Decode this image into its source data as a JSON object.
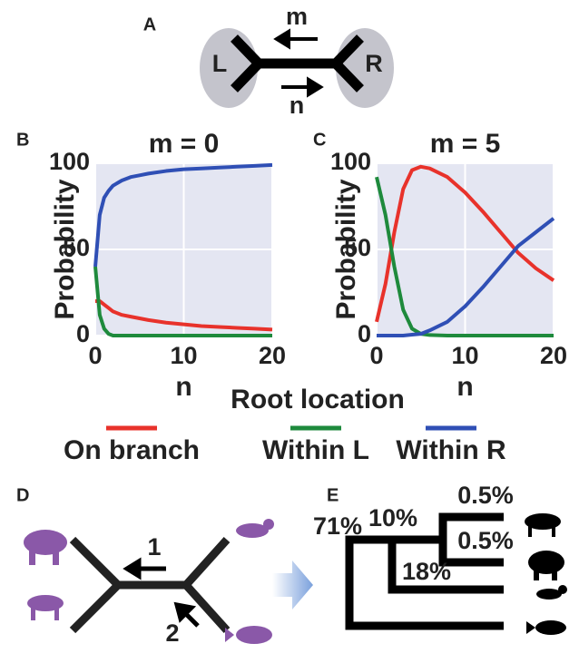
{
  "panels": {
    "a": "A",
    "b": "B",
    "c": "C",
    "d": "D",
    "e": "E"
  },
  "diagram_a": {
    "left": "L",
    "right": "R",
    "top_arrow": "m",
    "bottom_arrow": "n"
  },
  "legend_title": "Root location",
  "diagram_d": {
    "arrow_1": "1",
    "arrow_2": "2"
  },
  "diagram_e": {
    "root": "71%",
    "inner": "10%",
    "bird_branch": "18%",
    "top_pair": "0.5%",
    "bottom_pair": "0.5%"
  },
  "chart_data": [
    {
      "type": "line",
      "title": "m = 0",
      "y_label": "Probability",
      "x_label": "n",
      "x": [
        0,
        0.5,
        1,
        1.5,
        2,
        3,
        4,
        5,
        6,
        8,
        10,
        12,
        14,
        16,
        18,
        20
      ],
      "series": [
        {
          "name": "On branch",
          "color": "#e8322b",
          "values": [
            20,
            20,
            18,
            16,
            14,
            12,
            11,
            10,
            9,
            7.5,
            6.5,
            5.5,
            5,
            4.5,
            4,
            3.5
          ]
        },
        {
          "name": "Within L",
          "color": "#1e8a3c",
          "values": [
            40,
            12,
            4,
            1,
            0,
            0,
            0,
            0,
            0,
            0,
            0,
            0,
            0,
            0,
            0,
            0
          ]
        },
        {
          "name": "Within R",
          "color": "#2f4fb5",
          "values": [
            40,
            70,
            80,
            84,
            87,
            90,
            92,
            93,
            94,
            95.5,
            96.5,
            97,
            97.5,
            98,
            98.5,
            99
          ]
        }
      ],
      "xlim": [
        0,
        20
      ],
      "ylim": [
        0,
        100
      ],
      "xticks": [
        0,
        10,
        20
      ],
      "yticks": [
        0,
        50,
        100
      ],
      "grid": true
    },
    {
      "type": "line",
      "title": "m = 5",
      "y_label": "Probability",
      "x_label": "n",
      "x": [
        0,
        1,
        2,
        3,
        4,
        5,
        6,
        8,
        10,
        12,
        14,
        16,
        18,
        20
      ],
      "series": [
        {
          "color": "#e8322b",
          "values": [
            8,
            30,
            60,
            85,
            96,
            98,
            97,
            92,
            83,
            72,
            60,
            48,
            39,
            32
          ]
        },
        {
          "color": "#1e8a3c",
          "values": [
            92,
            70,
            40,
            15,
            4,
            1,
            0.3,
            0,
            0,
            0,
            0,
            0,
            0,
            0
          ]
        },
        {
          "color": "#2f4fb5",
          "values": [
            0,
            0,
            0,
            0,
            0.5,
            1,
            3,
            8,
            17,
            28,
            40,
            52,
            60,
            68
          ]
        }
      ],
      "xlim": [
        0,
        20
      ],
      "ylim": [
        0,
        100
      ],
      "xticks": [
        0,
        10,
        20
      ],
      "yticks": [
        0,
        50,
        100
      ],
      "grid": true
    }
  ]
}
